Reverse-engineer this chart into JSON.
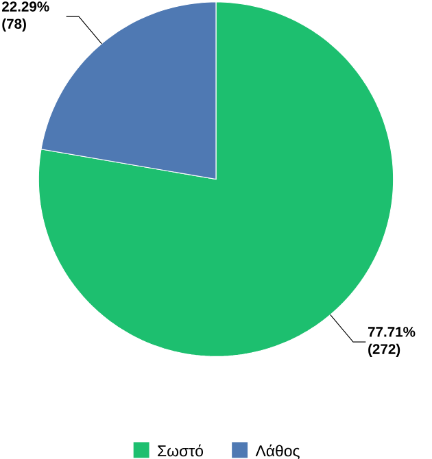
{
  "chart_data": {
    "type": "pie",
    "categories": [
      "Σωστό",
      "Λάθος"
    ],
    "values": [
      272,
      78
    ],
    "colors": [
      "#1dbf6f",
      "#4f79b3"
    ],
    "value_labels": [
      "77.71% (272)",
      "22.29% (78)"
    ],
    "legend": "bottom"
  }
}
